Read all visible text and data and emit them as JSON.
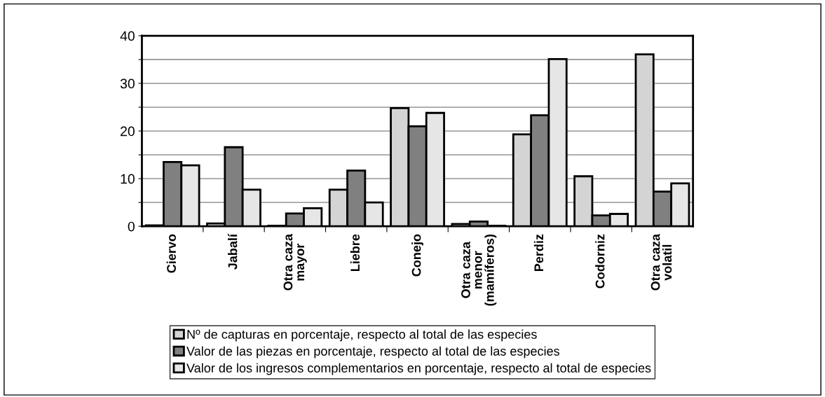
{
  "chart_data": {
    "type": "bar",
    "categories": [
      "Ciervo",
      "Jabalí",
      "Otra caza mayor",
      "Liebre",
      "Conejo",
      "Otra caza menor (mamíferos)",
      "Perdiz",
      "Codorniz",
      "Otra caza volatil"
    ],
    "series": [
      {
        "name": "Nº de capturas en porcentaje, respecto al total de las especies",
        "color": "#d4d4d4",
        "values": [
          0.2,
          0.6,
          0.1,
          7.7,
          24.8,
          0.5,
          19.3,
          10.5,
          36.1
        ]
      },
      {
        "name": "Valor de las piezas en porcentaje, respecto al total de las especies",
        "color": "#808080",
        "values": [
          13.5,
          16.6,
          2.7,
          11.7,
          21.0,
          1.0,
          23.3,
          2.3,
          7.3
        ]
      },
      {
        "name": "Valor de los ingresos complementarios en porcentaje, respecto al total de especies",
        "color": "#e6e6e6",
        "values": [
          12.8,
          7.7,
          3.8,
          5.0,
          23.8,
          0.1,
          35.1,
          2.6,
          9.0
        ]
      }
    ],
    "ylim": [
      0,
      40
    ],
    "yticks": [
      0,
      {
        "value": 5,
        "label": null
      },
      10,
      {
        "value": 15,
        "label": null
      },
      20,
      {
        "value": 25,
        "label": null
      },
      30,
      {
        "value": 35,
        "label": null
      },
      40
    ],
    "grid": "y",
    "legend": "bottom"
  }
}
